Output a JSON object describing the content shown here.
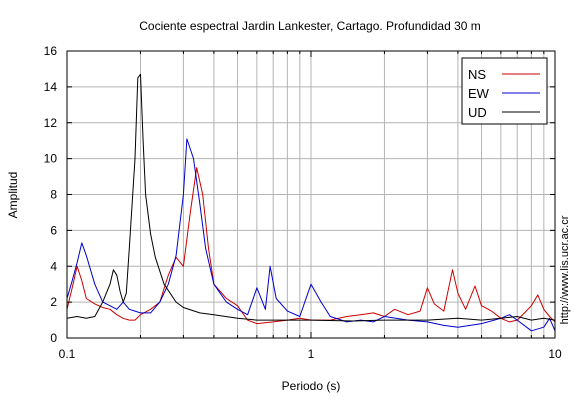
{
  "chart_data": {
    "type": "line",
    "title": "Cociente espectral Jardin Lankester, Cartago. Profundidad 30 m",
    "xlabel": "Periodo (s)",
    "ylabel": "Amplitud",
    "xscale": "log",
    "xlim": [
      0.1,
      10
    ],
    "ylim": [
      0,
      16
    ],
    "xticks": [
      {
        "value": 0.1,
        "label": "0.1"
      },
      {
        "value": 1,
        "label": "1"
      },
      {
        "value": 10,
        "label": "10"
      }
    ],
    "yticks": [
      0,
      2,
      4,
      6,
      8,
      10,
      12,
      14,
      16
    ],
    "grid": true,
    "legend_position": "top-right",
    "credit": "http://www.lis.ucr.ac.cr",
    "series": [
      {
        "name": "NS",
        "color": "#cc0000",
        "points": [
          [
            0.1,
            1.6
          ],
          [
            0.105,
            2.8
          ],
          [
            0.11,
            4.0
          ],
          [
            0.115,
            3.2
          ],
          [
            0.12,
            2.2
          ],
          [
            0.13,
            1.9
          ],
          [
            0.14,
            1.7
          ],
          [
            0.15,
            1.6
          ],
          [
            0.16,
            1.3
          ],
          [
            0.17,
            1.1
          ],
          [
            0.18,
            1.0
          ],
          [
            0.19,
            1.0
          ],
          [
            0.2,
            1.3
          ],
          [
            0.22,
            1.6
          ],
          [
            0.24,
            2.0
          ],
          [
            0.26,
            3.5
          ],
          [
            0.28,
            4.5
          ],
          [
            0.3,
            4.0
          ],
          [
            0.32,
            7.0
          ],
          [
            0.34,
            9.5
          ],
          [
            0.36,
            8.0
          ],
          [
            0.38,
            5.0
          ],
          [
            0.4,
            3.0
          ],
          [
            0.45,
            2.2
          ],
          [
            0.5,
            1.8
          ],
          [
            0.55,
            1.0
          ],
          [
            0.6,
            0.8
          ],
          [
            0.7,
            0.9
          ],
          [
            0.8,
            1.0
          ],
          [
            0.9,
            1.1
          ],
          [
            1.0,
            1.0
          ],
          [
            1.2,
            1.0
          ],
          [
            1.4,
            1.2
          ],
          [
            1.6,
            1.3
          ],
          [
            1.8,
            1.4
          ],
          [
            2.0,
            1.2
          ],
          [
            2.2,
            1.6
          ],
          [
            2.5,
            1.3
          ],
          [
            2.8,
            1.5
          ],
          [
            3.0,
            2.8
          ],
          [
            3.2,
            1.9
          ],
          [
            3.5,
            1.5
          ],
          [
            3.8,
            3.8
          ],
          [
            4.0,
            2.5
          ],
          [
            4.3,
            1.6
          ],
          [
            4.7,
            2.9
          ],
          [
            5.0,
            1.8
          ],
          [
            5.5,
            1.5
          ],
          [
            6.0,
            1.1
          ],
          [
            6.5,
            0.9
          ],
          [
            7.0,
            1.0
          ],
          [
            7.5,
            1.4
          ],
          [
            8.0,
            1.8
          ],
          [
            8.5,
            2.4
          ],
          [
            9.0,
            1.6
          ],
          [
            9.5,
            1.2
          ],
          [
            10,
            0.9
          ]
        ]
      },
      {
        "name": "EW",
        "color": "#0000cc",
        "points": [
          [
            0.1,
            2.2
          ],
          [
            0.105,
            3.2
          ],
          [
            0.11,
            4.2
          ],
          [
            0.115,
            5.3
          ],
          [
            0.12,
            4.6
          ],
          [
            0.13,
            3.0
          ],
          [
            0.14,
            2.0
          ],
          [
            0.15,
            1.8
          ],
          [
            0.16,
            1.6
          ],
          [
            0.17,
            2.0
          ],
          [
            0.18,
            1.6
          ],
          [
            0.19,
            1.5
          ],
          [
            0.2,
            1.4
          ],
          [
            0.22,
            1.4
          ],
          [
            0.24,
            2.0
          ],
          [
            0.26,
            3.0
          ],
          [
            0.28,
            4.6
          ],
          [
            0.3,
            8.0
          ],
          [
            0.31,
            11.1
          ],
          [
            0.33,
            10.0
          ],
          [
            0.35,
            7.5
          ],
          [
            0.37,
            5.0
          ],
          [
            0.4,
            3.0
          ],
          [
            0.45,
            2.0
          ],
          [
            0.5,
            1.6
          ],
          [
            0.55,
            1.3
          ],
          [
            0.6,
            2.8
          ],
          [
            0.65,
            1.6
          ],
          [
            0.68,
            4.0
          ],
          [
            0.72,
            2.2
          ],
          [
            0.8,
            1.5
          ],
          [
            0.9,
            1.2
          ],
          [
            1.0,
            3.0
          ],
          [
            1.1,
            2.0
          ],
          [
            1.2,
            1.2
          ],
          [
            1.4,
            0.9
          ],
          [
            1.6,
            1.0
          ],
          [
            1.8,
            0.9
          ],
          [
            2.0,
            1.2
          ],
          [
            2.5,
            1.0
          ],
          [
            3.0,
            0.9
          ],
          [
            3.5,
            0.7
          ],
          [
            4.0,
            0.6
          ],
          [
            5.0,
            0.8
          ],
          [
            6.0,
            1.1
          ],
          [
            6.5,
            1.3
          ],
          [
            7.0,
            1.0
          ],
          [
            8.0,
            0.4
          ],
          [
            9.0,
            0.6
          ],
          [
            9.5,
            1.1
          ],
          [
            10,
            0.4
          ]
        ]
      },
      {
        "name": "UD",
        "color": "#000000",
        "points": [
          [
            0.1,
            1.1
          ],
          [
            0.11,
            1.2
          ],
          [
            0.12,
            1.1
          ],
          [
            0.13,
            1.2
          ],
          [
            0.14,
            2.0
          ],
          [
            0.15,
            3.0
          ],
          [
            0.155,
            3.8
          ],
          [
            0.16,
            3.5
          ],
          [
            0.165,
            2.6
          ],
          [
            0.17,
            2.0
          ],
          [
            0.175,
            2.5
          ],
          [
            0.18,
            5.0
          ],
          [
            0.19,
            10.0
          ],
          [
            0.195,
            14.5
          ],
          [
            0.2,
            14.7
          ],
          [
            0.205,
            11.0
          ],
          [
            0.21,
            8.0
          ],
          [
            0.22,
            5.8
          ],
          [
            0.23,
            4.5
          ],
          [
            0.25,
            3.0
          ],
          [
            0.28,
            2.0
          ],
          [
            0.3,
            1.7
          ],
          [
            0.35,
            1.4
          ],
          [
            0.4,
            1.3
          ],
          [
            0.5,
            1.1
          ],
          [
            0.6,
            1.0
          ],
          [
            0.8,
            1.0
          ],
          [
            1.0,
            1.0
          ],
          [
            1.5,
            0.95
          ],
          [
            2.0,
            1.0
          ],
          [
            3.0,
            1.0
          ],
          [
            4.0,
            1.1
          ],
          [
            5.0,
            1.0
          ],
          [
            6.0,
            1.1
          ],
          [
            7.0,
            1.2
          ],
          [
            8.0,
            1.0
          ],
          [
            9.0,
            1.1
          ],
          [
            10,
            1.0
          ]
        ]
      }
    ]
  }
}
